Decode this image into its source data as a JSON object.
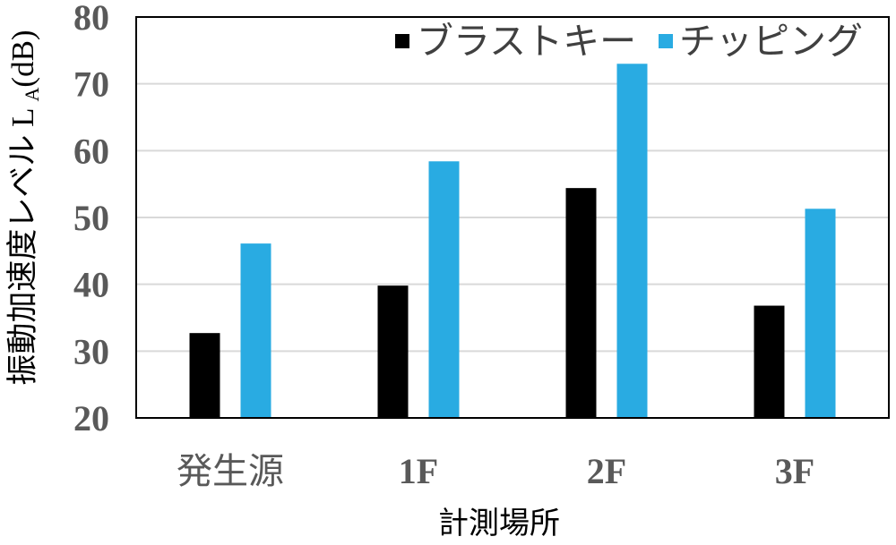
{
  "chart_data": {
    "type": "bar",
    "categories": [
      "発生源",
      "1F",
      "2F",
      "3F"
    ],
    "series": [
      {
        "name": "ブラストキー",
        "color": "#000000",
        "values": [
          32.7,
          39.8,
          54.4,
          36.8
        ]
      },
      {
        "name": "チッピング",
        "color": "#29ABE2",
        "values": [
          46.1,
          58.4,
          73.0,
          51.3
        ]
      }
    ],
    "xlabel": "計測場所",
    "ylabel": {
      "text": "振動加速度レベル L",
      "subscript": "A",
      "unit": "(dB)"
    },
    "ylim": [
      20,
      80
    ],
    "yticks": [
      20,
      30,
      40,
      50,
      60,
      70,
      80
    ],
    "grid": true,
    "legend": "top-right"
  }
}
